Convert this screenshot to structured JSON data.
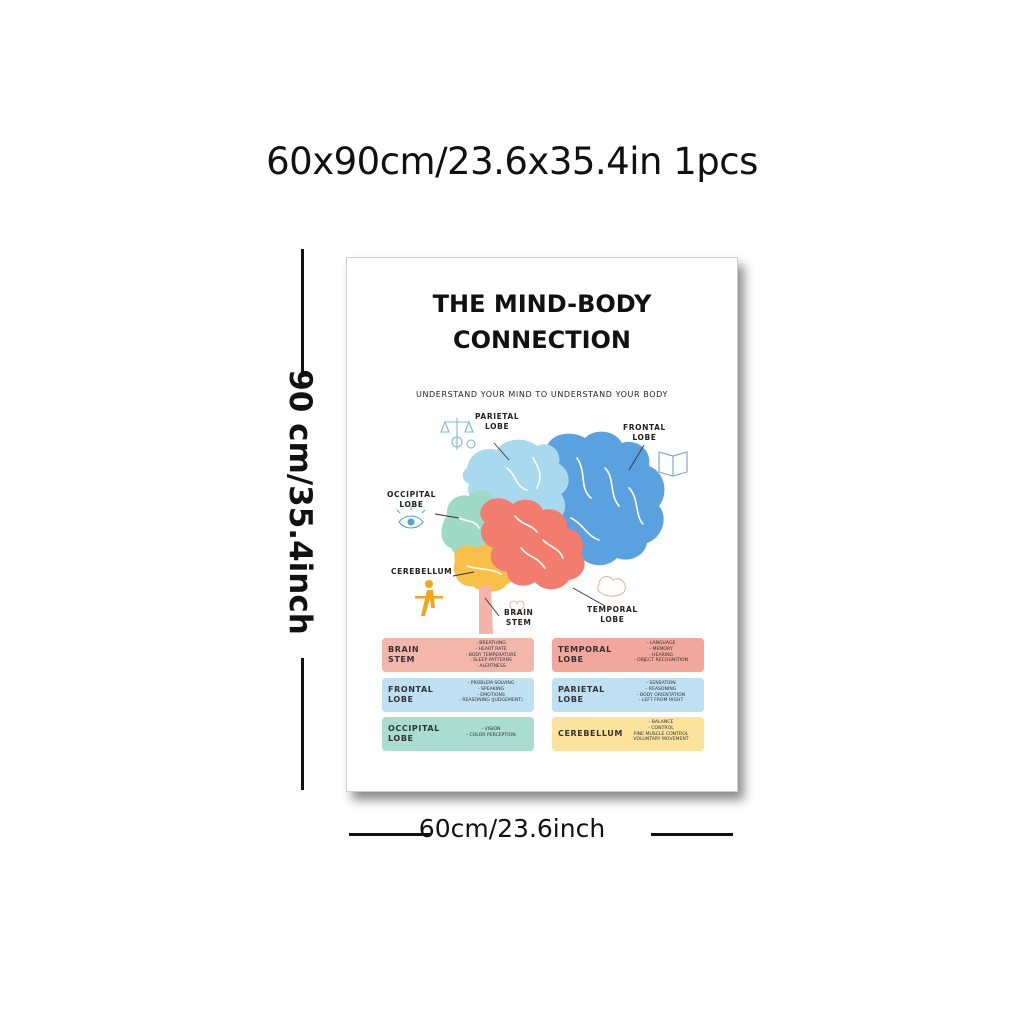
{
  "size_title": "60x90cm/23.6x35.4in 1pcs",
  "dimension_height": "90 cm/35.4inch",
  "dimension_width": "60cm/23.6inch",
  "poster": {
    "title_line1": "THE MIND-BODY",
    "title_line2": "CONNECTION",
    "subtitle": "UNDERSTAND YOUR MIND TO UNDERSTAND YOUR BODY",
    "labels": {
      "parietal": [
        "PARIETAL",
        "LOBE"
      ],
      "frontal": [
        "FRONTAL",
        "LOBE"
      ],
      "occipital": [
        "OCCIPITAL",
        "LOBE"
      ],
      "cerebellum": [
        "CEREBELLUM"
      ],
      "brain_stem": [
        "BRAIN",
        "STEM"
      ],
      "temporal": [
        "TEMPORAL",
        "LOBE"
      ]
    },
    "icons": [
      "scale-icon",
      "book-icon",
      "eye-icon",
      "balance-figure-icon",
      "heart-icon",
      "brain-sketch-icon"
    ],
    "cards": [
      {
        "name": [
          "BRAIN",
          "STEM"
        ],
        "color": "#f2b6ab",
        "functions": [
          "- BREATHING",
          "- HEART RATE",
          "- BODY TEMPERATURE",
          "- SLEEP PATTERNS",
          "- ALERTNESS"
        ]
      },
      {
        "name": [
          "TEMPORAL",
          "LOBE"
        ],
        "color": "#f1a79c",
        "functions": [
          "- LANGUAGE",
          "- MEMORY",
          "- HEARING",
          "- OBJECT RECOGNITION"
        ]
      },
      {
        "name": [
          "FRONTAL",
          "LOBE"
        ],
        "color": "#bfe0f3",
        "functions": [
          "- PROBLEM SOLVING",
          "- SPEAKING",
          "- EMOTIONS",
          "- REASONING (JUDGEMENT)"
        ]
      },
      {
        "name": [
          "PARIETAL",
          "LOBE"
        ],
        "color": "#bfe0f3",
        "functions": [
          "- SENSATION",
          "- REASONING",
          "- BODY ORIENTATION",
          "- LEFT FROM RIGHT"
        ]
      },
      {
        "name": [
          "OCCIPITAL",
          "LOBE"
        ],
        "color": "#a8ddd0",
        "functions": [
          "- VISION",
          "- COLOR PERCEPTION"
        ]
      },
      {
        "name": [
          "CEREBELLUM"
        ],
        "color": "#fbe39b",
        "functions": [
          "- BALANCE",
          "- CONTROL",
          "FINE MUSCLE CONTROL",
          "VOLUNTARY MOVEMENT"
        ]
      }
    ],
    "lobe_colors": {
      "frontal": "#5aa1df",
      "parietal": "#a9d9ee",
      "temporal": "#f27c6d",
      "occipital": "#9fdac7",
      "cerebellum": "#f8c049",
      "stem": "#f5b3ac"
    }
  }
}
